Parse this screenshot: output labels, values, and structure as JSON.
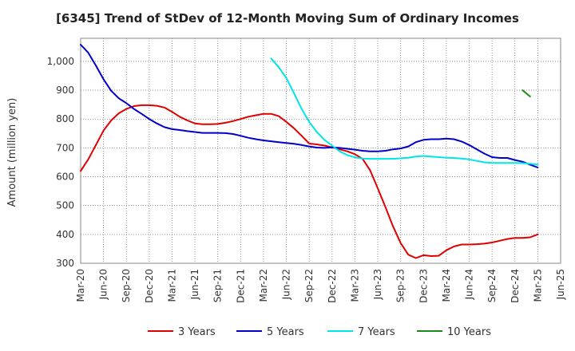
{
  "chart_data": {
    "type": "line",
    "title": "[6345]  Trend of StDev of 12-Month Moving Sum of Ordinary Incomes",
    "ylabel": "Amount (million yen)",
    "xlabel": "",
    "ylim": [
      300,
      1080
    ],
    "yticks": [
      300,
      400,
      500,
      600,
      700,
      800,
      900,
      1000
    ],
    "ytick_labels": [
      "300",
      "400",
      "500",
      "600",
      "700",
      "800",
      "900",
      "1,000"
    ],
    "xticks": [
      "Mar-20",
      "Jun-20",
      "Sep-20",
      "Dec-20",
      "Mar-21",
      "Jun-21",
      "Sep-21",
      "Dec-21",
      "Mar-22",
      "Jun-22",
      "Sep-22",
      "Dec-22",
      "Mar-23",
      "Jun-23",
      "Sep-23",
      "Dec-23",
      "Mar-24",
      "Jun-24",
      "Sep-24",
      "Dec-24",
      "Mar-25",
      "Jun-25"
    ],
    "x_start": "Mar-20",
    "grid": true,
    "legend_position": "bottom",
    "series": [
      {
        "name": "3 Years",
        "color": "#e00000",
        "start_index": 0,
        "values": [
          620,
          660,
          710,
          760,
          795,
          820,
          835,
          845,
          848,
          848,
          846,
          840,
          825,
          808,
          795,
          785,
          782,
          782,
          783,
          787,
          793,
          800,
          808,
          813,
          818,
          818,
          810,
          790,
          768,
          742,
          715,
          712,
          708,
          702,
          695,
          688,
          678,
          662,
          622,
          560,
          495,
          428,
          370,
          330,
          318,
          328,
          325,
          326,
          345,
          358,
          365,
          365,
          366,
          368,
          372,
          378,
          384,
          388,
          388,
          390,
          400
        ]
      },
      {
        "name": "5 Years",
        "color": "#0000cc",
        "start_index": 0,
        "values": [
          1058,
          1030,
          985,
          938,
          898,
          872,
          855,
          835,
          818,
          800,
          785,
          772,
          765,
          762,
          758,
          755,
          752,
          752,
          752,
          751,
          748,
          742,
          735,
          730,
          726,
          723,
          720,
          717,
          714,
          710,
          705,
          701,
          700,
          702,
          700,
          697,
          694,
          690,
          688,
          688,
          690,
          695,
          698,
          705,
          720,
          728,
          730,
          730,
          732,
          730,
          722,
          710,
          695,
          680,
          668,
          665,
          665,
          658,
          652,
          642,
          632
        ]
      },
      {
        "name": "7 Years",
        "color": "#00e5e5",
        "start_index": 25,
        "values": [
          1010,
          980,
          942,
          890,
          835,
          790,
          755,
          728,
          708,
          688,
          675,
          667,
          663,
          662,
          662,
          662,
          662,
          664,
          666,
          670,
          672,
          670,
          668,
          666,
          665,
          663,
          660,
          655,
          650,
          648,
          648,
          648,
          648,
          647,
          645,
          642
        ]
      },
      {
        "name": "10 Years",
        "color": "#1a8a1a",
        "start_index": 58,
        "values": [
          900,
          878
        ]
      }
    ]
  }
}
